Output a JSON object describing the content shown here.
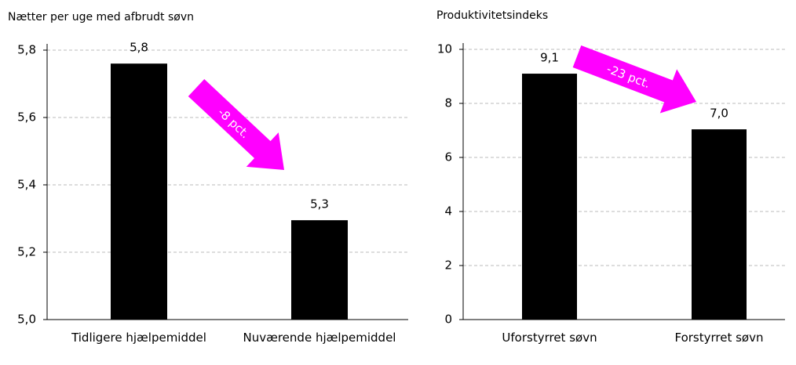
{
  "chart_data": [
    {
      "type": "bar",
      "title": "Nætter per uge med afbrudt søvn",
      "categories": [
        "Tidligere hjælpemiddel",
        "Nuværende hjælpemiddel"
      ],
      "values": [
        5.76,
        5.295
      ],
      "value_labels": [
        "5,8",
        "5,3"
      ],
      "color": "#000000",
      "ylim": [
        5.0,
        5.8
      ],
      "yticks": [
        {
          "value": 5.0,
          "label": "5,0"
        },
        {
          "value": 5.2,
          "label": "5,2"
        },
        {
          "value": 5.4,
          "label": "5,4"
        },
        {
          "value": 5.6,
          "label": "5,6"
        },
        {
          "value": 5.8,
          "label": "5,8"
        }
      ],
      "grid": true,
      "annotation": "-8 pct."
    },
    {
      "type": "bar",
      "title": "Produktivitetsindeks",
      "categories": [
        "Uforstyrret søvn",
        "Forstyrret søvn"
      ],
      "values": [
        9.1,
        7.04
      ],
      "value_labels": [
        "9,1",
        "7,0"
      ],
      "color": "#000000",
      "ylim": [
        0,
        10
      ],
      "yticks": [
        0,
        2,
        4,
        6,
        8,
        10
      ],
      "grid": true,
      "annotation": "-23 pct."
    }
  ]
}
